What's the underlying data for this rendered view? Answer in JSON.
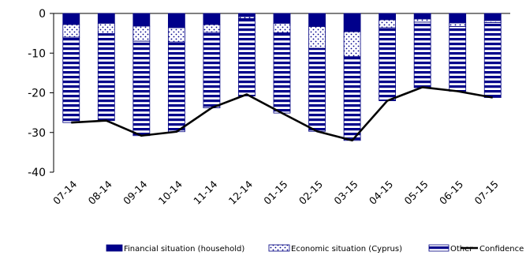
{
  "chart_data": {
    "type": "bar",
    "stacked": true,
    "categories": [
      "07-14",
      "08-14",
      "09-14",
      "10-14",
      "11-14",
      "12-14",
      "01-15",
      "02-15",
      "03-15",
      "04-15",
      "05-15",
      "06-15",
      "07-15"
    ],
    "y_ticks": [
      "0",
      "-10",
      "-20",
      "-30",
      "-40"
    ],
    "ylim": [
      -40,
      0
    ],
    "grid": false,
    "legend_position": "bottom",
    "series": [
      {
        "name": "Financial situation (household)",
        "kind": "bar",
        "pattern": "solid-navy",
        "values": [
          -2.8,
          -2.5,
          -3.2,
          -3.6,
          -2.8,
          -0.8,
          -2.5,
          -3.3,
          -4.6,
          -1.6,
          -1.4,
          -2.4,
          -1.8
        ]
      },
      {
        "name": "Economic situation (Cyprus)",
        "kind": "bar",
        "pattern": "dots",
        "values": [
          -3.2,
          -2.6,
          -3.8,
          -3.6,
          -2.0,
          -0.5,
          -2.4,
          -5.5,
          -6.3,
          -2.0,
          -0.8,
          -0.9,
          -0.5
        ]
      },
      {
        "name": "Other",
        "kind": "bar",
        "pattern": "stripes",
        "values": [
          -21.5,
          -21.9,
          -23.8,
          -22.6,
          -19.0,
          -19.5,
          -20.2,
          -20.9,
          -21.1,
          -18.4,
          -16.5,
          -16.3,
          -18.9
        ]
      },
      {
        "name": "Confidence Indicator",
        "kind": "line",
        "values": [
          -27.5,
          -27.0,
          -30.8,
          -29.8,
          -23.8,
          -20.4,
          -25.1,
          -29.7,
          -32.0,
          -22.0,
          -18.6,
          -19.6,
          -21.2
        ]
      }
    ],
    "colors": {
      "navy": "#00008b",
      "line": "#000000",
      "bar_outline": "#000080"
    }
  }
}
